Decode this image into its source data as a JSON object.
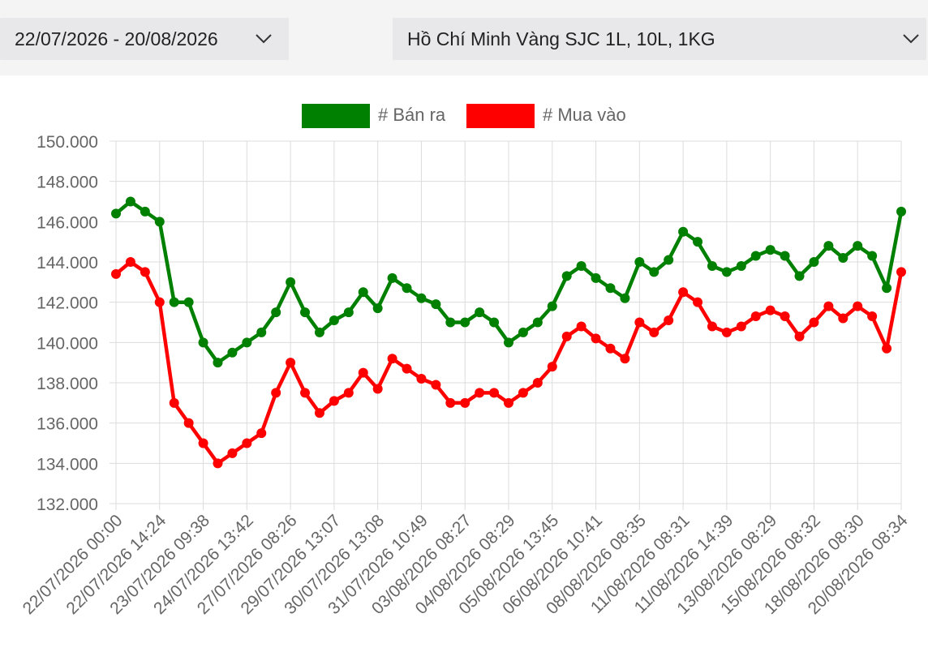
{
  "filters": {
    "date_range": "22/07/2026 - 20/08/2026",
    "product": "Hồ Chí Minh Vàng SJC 1L, 10L, 1KG",
    "date_icon": "chevron-down-icon",
    "product_icon": "chevron-down-icon"
  },
  "chart_data": {
    "type": "line",
    "title": "",
    "xlabel": "",
    "ylabel": "",
    "ylim": [
      132000,
      150000
    ],
    "yticks": [
      "150.000",
      "148.000",
      "146.000",
      "144.000",
      "142.000",
      "140.000",
      "138.000",
      "136.000",
      "134.000",
      "132.000"
    ],
    "ytick_values": [
      150000,
      148000,
      146000,
      144000,
      142000,
      140000,
      138000,
      136000,
      134000,
      132000
    ],
    "grid": true,
    "legend_position": "top-center",
    "x_ticks": [
      "22/07/2026 00:00",
      "22/07/2026 14:24",
      "23/07/2026 09:38",
      "24/07/2026 13:42",
      "27/07/2026 08:26",
      "29/07/2026 13:07",
      "30/07/2026 13:08",
      "31/07/2026 10:49",
      "03/08/2026 08:27",
      "04/08/2026 08:29",
      "05/08/2026 13:45",
      "06/08/2026 10:41",
      "08/08/2026 08:35",
      "11/08/2026 08:31",
      "11/08/2026 14:39",
      "13/08/2026 08:29",
      "15/08/2026 08:32",
      "18/08/2026 08:30",
      "20/08/2026 08:34"
    ],
    "series": [
      {
        "name": "# Bán ra",
        "color": "#008000",
        "values": [
          146400,
          147000,
          146500,
          146000,
          142000,
          142000,
          140000,
          139000,
          139500,
          140000,
          140500,
          141500,
          143000,
          141500,
          140500,
          141100,
          141500,
          142500,
          141700,
          143200,
          142700,
          142200,
          141900,
          141000,
          141000,
          141500,
          141000,
          140000,
          140500,
          141000,
          141800,
          143300,
          143800,
          143200,
          142700,
          142200,
          144000,
          143500,
          144100,
          145500,
          145000,
          143800,
          143500,
          143800,
          144300,
          144600,
          144300,
          143300,
          144000,
          144800,
          144200,
          144800,
          144300,
          142700,
          146500
        ]
      },
      {
        "name": "# Mua vào",
        "color": "#ff0000",
        "values": [
          143400,
          144000,
          143500,
          142000,
          137000,
          136000,
          135000,
          134000,
          134500,
          135000,
          135500,
          137500,
          139000,
          137500,
          136500,
          137100,
          137500,
          138500,
          137700,
          139200,
          138700,
          138200,
          137900,
          137000,
          137000,
          137500,
          137500,
          137000,
          137500,
          138000,
          138800,
          140300,
          140800,
          140200,
          139700,
          139200,
          141000,
          140500,
          141100,
          142500,
          142000,
          140800,
          140500,
          140800,
          141300,
          141600,
          141300,
          140300,
          141000,
          141800,
          141200,
          141800,
          141300,
          139700,
          143500
        ]
      }
    ]
  }
}
